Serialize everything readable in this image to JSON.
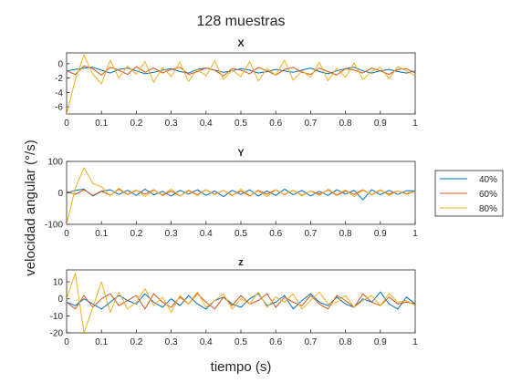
{
  "figure": {
    "title": "128 muestras",
    "xlabel": "tiempo (s)",
    "ylabel": "velocidad angular (°/s)"
  },
  "legend": {
    "placement": "right",
    "entries": [
      {
        "name": "40%",
        "color": "#0072BD"
      },
      {
        "name": "60%",
        "color": "#D95319"
      },
      {
        "name": "80%",
        "color": "#EDB120"
      }
    ]
  },
  "chart_data": [
    {
      "type": "line",
      "title": "X",
      "xlim": [
        0,
        1
      ],
      "ylim": [
        -7,
        1.5
      ],
      "xticks": [
        0,
        0.1,
        0.2,
        0.3,
        0.4,
        0.5,
        0.6,
        0.7,
        0.8,
        0.9,
        1
      ],
      "xticklabels": [
        "0",
        "0.1",
        "0.2",
        "0.3",
        "0.4",
        "0.5",
        "0.6",
        "0.7",
        "0.8",
        "0.9",
        "1"
      ],
      "yticks": [
        0,
        -2,
        -4,
        -6
      ],
      "yticklabels": [
        "0",
        "-2",
        "-4",
        "-6"
      ],
      "grid": false,
      "x": [
        0,
        0.025,
        0.05,
        0.075,
        0.1,
        0.125,
        0.15,
        0.175,
        0.2,
        0.225,
        0.25,
        0.275,
        0.3,
        0.325,
        0.35,
        0.375,
        0.4,
        0.425,
        0.45,
        0.475,
        0.5,
        0.525,
        0.55,
        0.575,
        0.6,
        0.625,
        0.65,
        0.675,
        0.7,
        0.725,
        0.75,
        0.775,
        0.8,
        0.825,
        0.85,
        0.875,
        0.9,
        0.925,
        0.95,
        0.975,
        1
      ],
      "series": [
        {
          "name": "40%",
          "color": "#0072BD",
          "values": [
            -1,
            -0.8,
            -0.6,
            -0.5,
            -0.9,
            -1.3,
            -0.8,
            -0.6,
            -1.0,
            -1.4,
            -1.2,
            -0.9,
            -0.7,
            -1.1,
            -1.3,
            -0.8,
            -0.6,
            -0.9,
            -1.2,
            -1.0,
            -0.7,
            -0.9,
            -1.3,
            -1.1,
            -0.8,
            -1.0,
            -1.2,
            -0.9,
            -0.6,
            -1.1,
            -1.4,
            -1.0,
            -0.7,
            -0.5,
            -1.0,
            -1.3,
            -1.0,
            -0.8,
            -1.1,
            -1.3,
            -1.0
          ]
        },
        {
          "name": "60%",
          "color": "#D95319",
          "values": [
            -1,
            -1.5,
            -0.3,
            -0.7,
            -1.6,
            -0.5,
            -0.9,
            -1.5,
            -0.4,
            -1.2,
            -0.6,
            -1.3,
            -0.8,
            -0.5,
            -1.5,
            -1.1,
            -0.6,
            -0.9,
            -1.7,
            -0.7,
            -0.9,
            -1.4,
            -0.5,
            -1.0,
            -1.6,
            -0.8,
            -0.5,
            -1.2,
            -1.5,
            -0.6,
            -1.1,
            -1.6,
            -0.7,
            -0.9,
            -1.3,
            -0.6,
            -1.0,
            -1.5,
            -0.8,
            -0.7,
            -1.3
          ]
        },
        {
          "name": "80%",
          "color": "#EDB120",
          "values": [
            -7,
            -2.2,
            1.2,
            -1.5,
            -2.8,
            0.5,
            -2.0,
            -0.3,
            -1.5,
            0.3,
            -2.6,
            -0.5,
            -1.8,
            0.2,
            -2.5,
            -0.8,
            -1.7,
            0.4,
            -2.2,
            -0.9,
            -1.8,
            0.3,
            -2.4,
            -0.7,
            -1.6,
            0.5,
            -2.3,
            -1.0,
            -1.9,
            0.2,
            -2.4,
            -0.6,
            -1.9,
            0.1,
            -2.2,
            -1.1,
            -0.5,
            -2.1,
            -0.4,
            -1.0,
            -1.7
          ]
        }
      ]
    },
    {
      "type": "line",
      "title": "Y",
      "xlim": [
        0,
        1
      ],
      "ylim": [
        -100,
        100
      ],
      "xticks": [
        0,
        0.1,
        0.2,
        0.3,
        0.4,
        0.5,
        0.6,
        0.7,
        0.8,
        0.9,
        1
      ],
      "xticklabels": [
        "0",
        "0.1",
        "0.2",
        "0.3",
        "0.4",
        "0.5",
        "0.6",
        "0.7",
        "0.8",
        "0.9",
        "1"
      ],
      "yticks": [
        100,
        0,
        -100
      ],
      "yticklabels": [
        "100",
        "0",
        "-100"
      ],
      "grid": false,
      "x": [
        0,
        0.025,
        0.05,
        0.075,
        0.1,
        0.125,
        0.15,
        0.175,
        0.2,
        0.225,
        0.25,
        0.275,
        0.3,
        0.325,
        0.35,
        0.375,
        0.4,
        0.425,
        0.45,
        0.475,
        0.5,
        0.525,
        0.55,
        0.575,
        0.6,
        0.625,
        0.65,
        0.675,
        0.7,
        0.725,
        0.75,
        0.775,
        0.8,
        0.825,
        0.85,
        0.875,
        0.9,
        0.925,
        0.95,
        0.975,
        1
      ],
      "series": [
        {
          "name": "40%",
          "color": "#0072BD",
          "values": [
            0,
            8,
            12,
            -10,
            5,
            10,
            -5,
            8,
            -8,
            12,
            -6,
            5,
            -10,
            8,
            -4,
            10,
            -8,
            6,
            -12,
            8,
            -5,
            10,
            -10,
            6,
            -8,
            12,
            -6,
            8,
            -10,
            5,
            -8,
            10,
            -4,
            8,
            -22,
            10,
            -6,
            8,
            -5,
            7,
            6
          ]
        },
        {
          "name": "60%",
          "color": "#D95319",
          "values": [
            5,
            -5,
            10,
            -8,
            6,
            -8,
            12,
            -6,
            8,
            -4,
            10,
            -8,
            6,
            -10,
            8,
            -6,
            10,
            -5,
            8,
            -8,
            6,
            -10,
            8,
            -5,
            10,
            -6,
            8,
            -8,
            6,
            -4,
            10,
            -8,
            6,
            -5,
            10,
            -6,
            8,
            -4,
            6,
            -3,
            5
          ]
        },
        {
          "name": "80%",
          "color": "#EDB120",
          "values": [
            -100,
            15,
            80,
            30,
            20,
            -10,
            15,
            -5,
            10,
            -12,
            8,
            -6,
            12,
            -10,
            6,
            -8,
            10,
            -6,
            8,
            -10,
            12,
            -8,
            6,
            -12,
            10,
            -5,
            8,
            -10,
            6,
            -8,
            12,
            -6,
            10,
            -12,
            8,
            -5,
            10,
            -8,
            6,
            -5,
            4
          ]
        }
      ]
    },
    {
      "type": "line",
      "title": "z",
      "xlim": [
        0,
        1
      ],
      "ylim": [
        -20,
        17
      ],
      "xticks": [
        0,
        0.1,
        0.2,
        0.3,
        0.4,
        0.5,
        0.6,
        0.7,
        0.8,
        0.9,
        1
      ],
      "xticklabels": [
        "0",
        "0.1",
        "0.2",
        "0.3",
        "0.4",
        "0.5",
        "0.6",
        "0.7",
        "0.8",
        "0.9",
        "1"
      ],
      "yticks": [
        10,
        0,
        -10,
        -20
      ],
      "yticklabels": [
        "10",
        "0",
        "-10",
        "-20"
      ],
      "grid": false,
      "x": [
        0,
        0.025,
        0.05,
        0.075,
        0.1,
        0.125,
        0.15,
        0.175,
        0.2,
        0.225,
        0.25,
        0.275,
        0.3,
        0.325,
        0.35,
        0.375,
        0.4,
        0.425,
        0.45,
        0.475,
        0.5,
        0.525,
        0.55,
        0.575,
        0.6,
        0.625,
        0.65,
        0.675,
        0.7,
        0.725,
        0.75,
        0.775,
        0.8,
        0.825,
        0.85,
        0.875,
        0.9,
        0.925,
        0.95,
        0.975,
        1
      ],
      "series": [
        {
          "name": "40%",
          "color": "#0072BD",
          "values": [
            -2,
            -4,
            0,
            -3,
            -6,
            -2,
            2,
            -1,
            -3,
            3,
            -2,
            -5,
            0,
            -4,
            2,
            -3,
            -6,
            -1,
            1,
            -3,
            -5,
            0,
            3,
            -4,
            -2,
            2,
            -6,
            -1,
            3,
            -2,
            -4,
            1,
            -3,
            -5,
            0,
            -2,
            4,
            -3,
            -6,
            1,
            -3
          ]
        },
        {
          "name": "60%",
          "color": "#D95319",
          "values": [
            -2,
            -6,
            2,
            -5,
            0,
            3,
            -4,
            -1,
            2,
            -6,
            3,
            -2,
            -5,
            1,
            -3,
            3,
            -2,
            -6,
            1,
            -4,
            2,
            -3,
            -1,
            3,
            -5,
            1,
            -2,
            -4,
            2,
            -3,
            -6,
            2,
            -1,
            -5,
            3,
            -2,
            -4,
            1,
            -3,
            -2,
            -3
          ]
        },
        {
          "name": "80%",
          "color": "#EDB120",
          "values": [
            0,
            15,
            -20,
            -5,
            10,
            -8,
            4,
            -6,
            -2,
            6,
            -4,
            1,
            -8,
            2,
            -3,
            4,
            -5,
            -1,
            3,
            -6,
            0,
            -3,
            4,
            -5,
            1,
            -2,
            3,
            -6,
            -1,
            4,
            -3,
            -2,
            2,
            -5,
            -1,
            2,
            -4,
            3,
            -2,
            -1,
            -4
          ]
        }
      ]
    }
  ]
}
